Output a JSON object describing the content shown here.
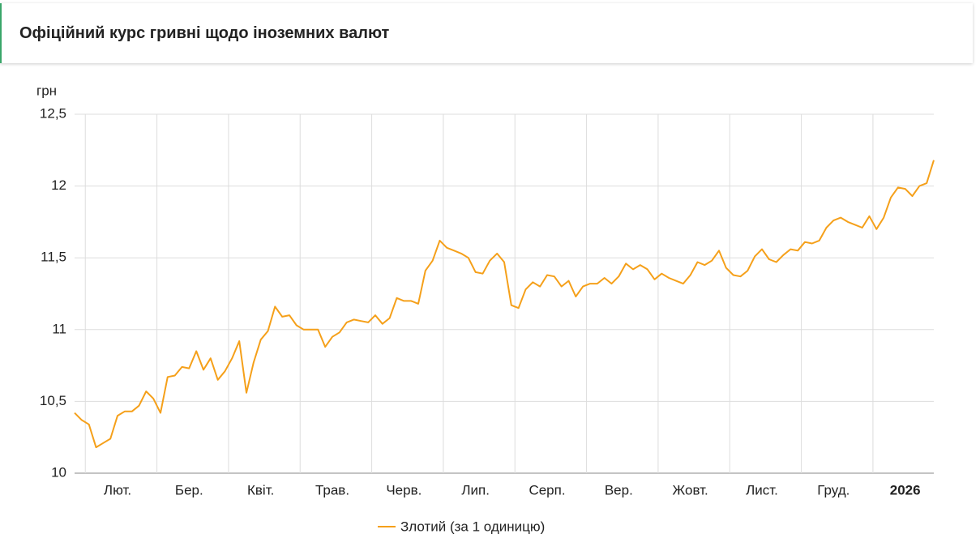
{
  "chart_data": {
    "type": "line",
    "title": "Офіційний курс гривні щодо іноземних валют",
    "y_label": "грн",
    "categories": [
      null,
      null,
      null,
      null,
      null,
      null,
      "Лют.",
      null,
      null,
      null,
      null,
      null,
      null,
      null,
      null,
      null,
      "Бер.",
      null,
      null,
      null,
      null,
      null,
      null,
      null,
      null,
      null,
      "Квіт.",
      null,
      null,
      null,
      null,
      null,
      null,
      null,
      null,
      null,
      "Трав.",
      null,
      null,
      null,
      null,
      null,
      null,
      null,
      null,
      null,
      "Черв.",
      null,
      null,
      null,
      null,
      null,
      null,
      null,
      null,
      null,
      "Лип.",
      null,
      null,
      null,
      null,
      null,
      null,
      null,
      null,
      null,
      "Серп.",
      null,
      null,
      null,
      null,
      null,
      null,
      null,
      null,
      null,
      "Вер.",
      null,
      null,
      null,
      null,
      null,
      null,
      null,
      null,
      null,
      "Жовт.",
      null,
      null,
      null,
      null,
      null,
      null,
      null,
      null,
      null,
      "Лист.",
      null,
      null,
      null,
      null,
      null,
      null,
      null,
      null,
      null,
      "Груд.",
      null,
      null,
      null,
      null,
      null,
      null,
      null,
      null,
      null,
      "2026",
      null,
      null,
      null,
      null
    ],
    "series": [
      {
        "name": "Злотий (за 1 одиницю)",
        "color": "#f5a01a",
        "values": [
          10.42,
          10.37,
          10.34,
          10.18,
          10.21,
          10.24,
          10.4,
          10.43,
          10.43,
          10.47,
          10.57,
          10.52,
          10.42,
          10.67,
          10.68,
          10.74,
          10.73,
          10.85,
          10.72,
          10.8,
          10.65,
          10.71,
          10.8,
          10.92,
          10.56,
          10.77,
          10.93,
          10.99,
          11.16,
          11.09,
          11.1,
          11.03,
          11.0,
          11.0,
          11.0,
          10.88,
          10.95,
          10.98,
          11.05,
          11.07,
          11.06,
          11.05,
          11.1,
          11.04,
          11.08,
          11.22,
          11.2,
          11.2,
          11.18,
          11.41,
          11.48,
          11.62,
          11.57,
          11.55,
          11.53,
          11.5,
          11.4,
          11.39,
          11.48,
          11.53,
          11.47,
          11.17,
          11.15,
          11.28,
          11.33,
          11.3,
          11.38,
          11.37,
          11.3,
          11.34,
          11.23,
          11.3,
          11.32,
          11.32,
          11.36,
          11.32,
          11.37,
          11.46,
          11.42,
          11.45,
          11.42,
          11.35,
          11.39,
          11.36,
          11.34,
          11.32,
          11.38,
          11.47,
          11.45,
          11.48,
          11.55,
          11.43,
          11.38,
          11.37,
          11.41,
          11.51,
          11.56,
          11.49,
          11.47,
          11.52,
          11.56,
          11.55,
          11.61,
          11.6,
          11.62,
          11.71,
          11.76,
          11.78,
          11.75,
          11.73,
          11.71,
          11.79,
          11.7,
          11.78,
          11.92,
          11.99,
          11.98,
          11.93,
          12.0,
          12.02,
          12.18
        ]
      }
    ],
    "ylim": [
      10,
      12.5
    ],
    "yticks": [
      10,
      {
        "value": 10.5,
        "label": "10,5"
      },
      11,
      {
        "value": 11.5,
        "label": "11,5"
      },
      12,
      {
        "value": 12.5,
        "label": "12,5"
      }
    ],
    "grid": true
  }
}
